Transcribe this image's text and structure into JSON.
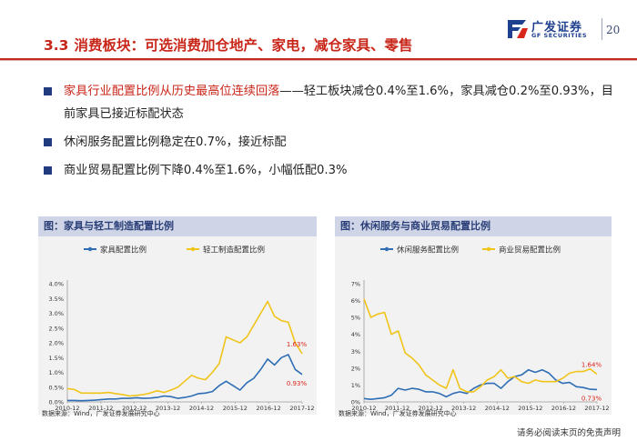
{
  "header": {
    "section_number": "3.3",
    "title": "消费板块：可选消费加仓地产、家电，减仓家具、零售",
    "logo_cn": "广发证券",
    "logo_en": "GF SECURITIES",
    "page_number": "20"
  },
  "bullets": [
    {
      "highlight": "家具行业配置比例从历史最高位连续回落",
      "text": "——轻工板块减仓0.4%至1.6%，家具减仓0.2%至0.93%，目前家具已接近标配状态"
    },
    {
      "highlight": "",
      "text": "休闲服务配置比例稳定在0.7%，接近标配"
    },
    {
      "highlight": "",
      "text": "商业贸易配置比例下降0.4%至1.6%，小幅低配0.3%"
    }
  ],
  "panels": [
    {
      "title": "图：家具与轻工制造配置比例",
      "source": "数据来源：Wind，广发证券发展研究中心"
    },
    {
      "title": "图：休闲服务与商业贸易配置比例",
      "source": "数据来源：Wind，广发证券发展研究中心"
    }
  ],
  "footer": "请务必阅读末页的免责声明",
  "colors": {
    "accent_red": "#c9261a",
    "navy": "#213c7e",
    "series_blue": "#2f6eb5",
    "series_yellow": "#f0c419"
  },
  "chart_data": [
    {
      "type": "line",
      "x_ticks": [
        "2010-12",
        "2011-12",
        "2012-12",
        "2013-12",
        "2014-12",
        "2015-12",
        "2016-12",
        "2017-12"
      ],
      "ylim": [
        0,
        4.0
      ],
      "y_ticks": [
        "0.0%",
        "0.5%",
        "1.0%",
        "1.5%",
        "2.0%",
        "2.5%",
        "3.0%",
        "3.5%",
        "4.0%"
      ],
      "grid": false,
      "legend": "top",
      "series": [
        {
          "name": "家具配置比例",
          "color": "#2f6eb5",
          "values": [
            0.05,
            0.05,
            0.04,
            0.05,
            0.06,
            0.08,
            0.1,
            0.1,
            0.12,
            0.12,
            0.14,
            0.12,
            0.13,
            0.15,
            0.2,
            0.18,
            0.12,
            0.15,
            0.2,
            0.28,
            0.3,
            0.35,
            0.55,
            0.7,
            0.55,
            0.4,
            0.65,
            0.8,
            1.1,
            1.45,
            1.25,
            1.5,
            1.6,
            1.1,
            0.93
          ],
          "end_label": "0.93%"
        },
        {
          "name": "轻工制造配置比例",
          "color": "#f0c419",
          "values": [
            0.45,
            0.42,
            0.3,
            0.3,
            0.3,
            0.3,
            0.32,
            0.28,
            0.25,
            0.2,
            0.22,
            0.25,
            0.3,
            0.38,
            0.32,
            0.4,
            0.5,
            0.7,
            0.9,
            0.8,
            0.75,
            1.0,
            1.3,
            2.2,
            2.1,
            2.0,
            2.2,
            2.6,
            3.0,
            3.4,
            2.9,
            2.75,
            2.7,
            2.0,
            1.63
          ],
          "end_label": "1.63%"
        }
      ]
    },
    {
      "type": "line",
      "x_ticks": [
        "2010-12",
        "2011-12",
        "2012-12",
        "2013-12",
        "2014-12",
        "2015-12",
        "2016-12",
        "2017-12"
      ],
      "ylim": [
        0,
        7
      ],
      "y_ticks": [
        "0%",
        "1%",
        "2%",
        "3%",
        "4%",
        "5%",
        "6%",
        "7%"
      ],
      "grid": false,
      "legend": "top",
      "series": [
        {
          "name": "休闲服务配置比例",
          "color": "#2f6eb5",
          "values": [
            0.2,
            0.15,
            0.2,
            0.25,
            0.4,
            0.8,
            0.7,
            0.8,
            0.75,
            0.6,
            0.6,
            0.5,
            0.3,
            0.5,
            0.6,
            0.5,
            0.8,
            1.0,
            1.1,
            1.1,
            0.8,
            1.2,
            1.5,
            1.6,
            1.9,
            1.75,
            1.9,
            1.7,
            1.3,
            1.1,
            1.15,
            0.9,
            0.85,
            0.75,
            0.73
          ],
          "end_label": "0.73%"
        },
        {
          "name": "商业贸易配置比例",
          "color": "#f0c419",
          "values": [
            6.1,
            5.0,
            5.2,
            5.3,
            4.0,
            4.2,
            2.9,
            2.6,
            2.2,
            1.6,
            1.3,
            1.0,
            0.8,
            1.9,
            0.8,
            0.6,
            0.6,
            0.9,
            1.3,
            1.5,
            1.9,
            1.4,
            1.5,
            1.2,
            1.1,
            1.3,
            1.2,
            1.2,
            1.2,
            1.4,
            1.7,
            1.8,
            1.8,
            1.95,
            1.64
          ],
          "end_label": "1.64%"
        }
      ]
    }
  ]
}
